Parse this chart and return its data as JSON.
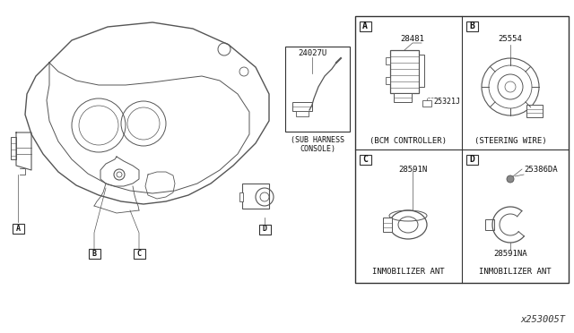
{
  "bg_color": "#ffffff",
  "line_color": "#555555",
  "box_outline": "#333333",
  "text_color": "#111111",
  "fig_width": 6.4,
  "fig_height": 3.72,
  "watermark": "x253005T",
  "sub_harness_label": "24027U",
  "sub_harness_caption": "(SUB HARNESS\nCONSOLE)",
  "part_A_number": "28481",
  "part_A_sub": "25321J",
  "part_A_caption": "(BCM CONTROLLER)",
  "part_B_number": "25554",
  "part_B_caption": "(STEERING WIRE)",
  "part_C_number": "28591N",
  "part_C_caption": "INMOBILIZER ANT",
  "part_D_number1": "25386DA",
  "part_D_number2": "28591NA",
  "part_D_caption": "INMOBILIZER ANT",
  "label_A": "A",
  "label_B": "B",
  "label_C": "C",
  "label_D": "D"
}
